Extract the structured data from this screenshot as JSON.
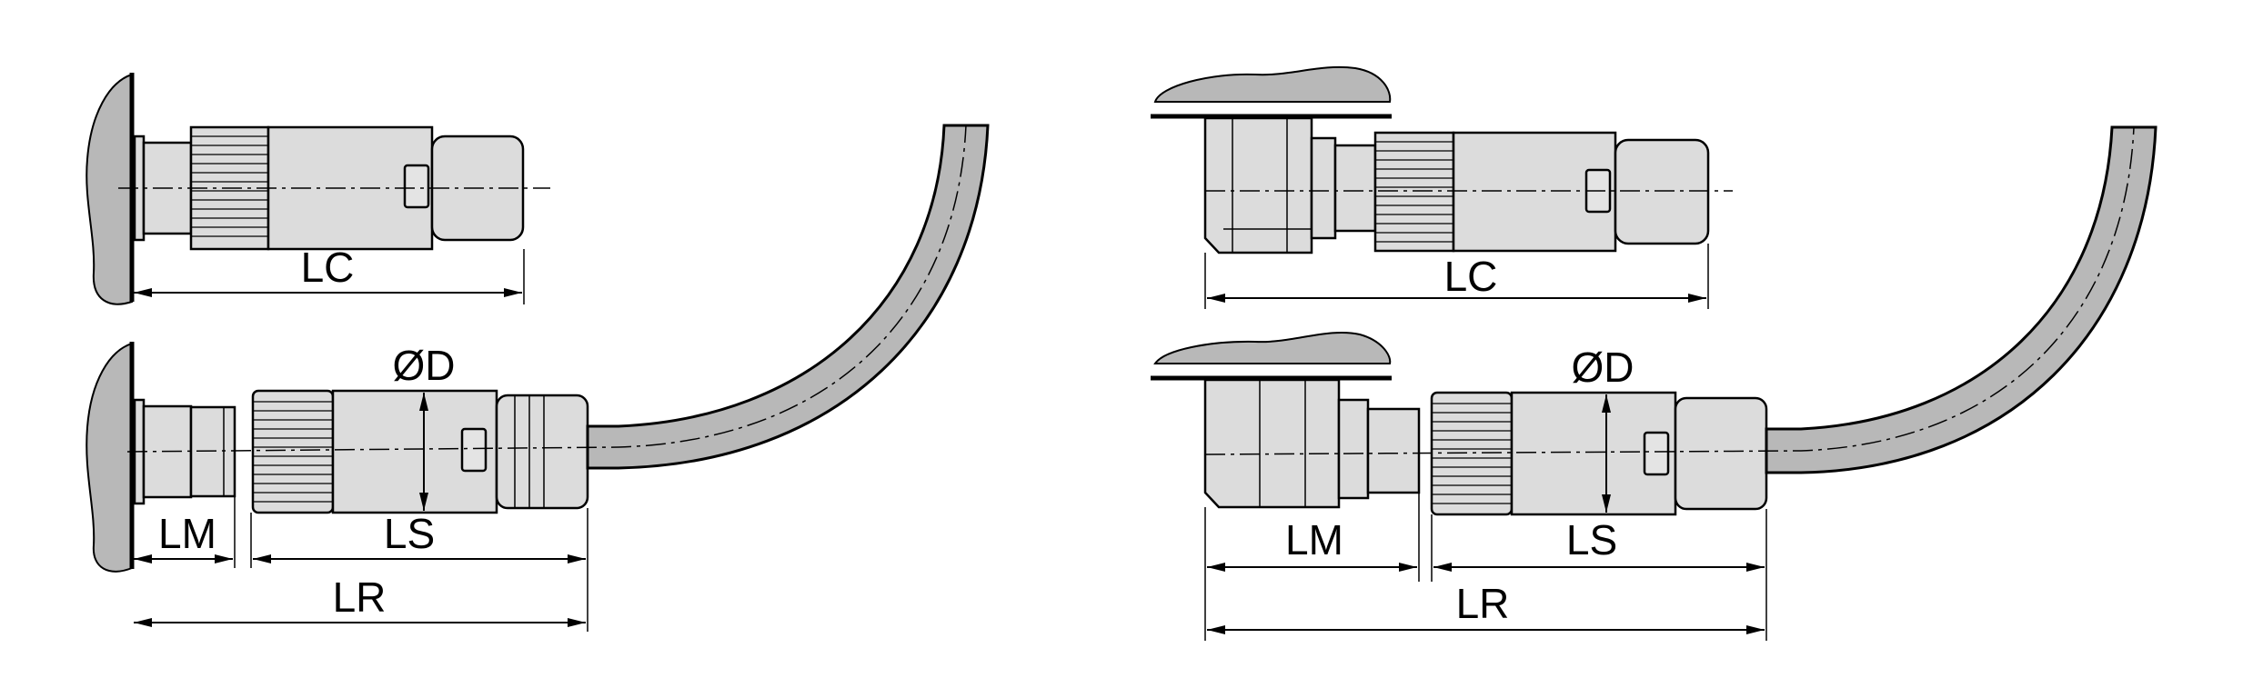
{
  "labels": {
    "lc": "LC",
    "lm": "LM",
    "ls": "LS",
    "lr": "LR",
    "od": "ØD"
  },
  "colors": {
    "part_fill": "#dcdcdc",
    "wall_fill": "#b8b8b8",
    "line": "#000000"
  }
}
